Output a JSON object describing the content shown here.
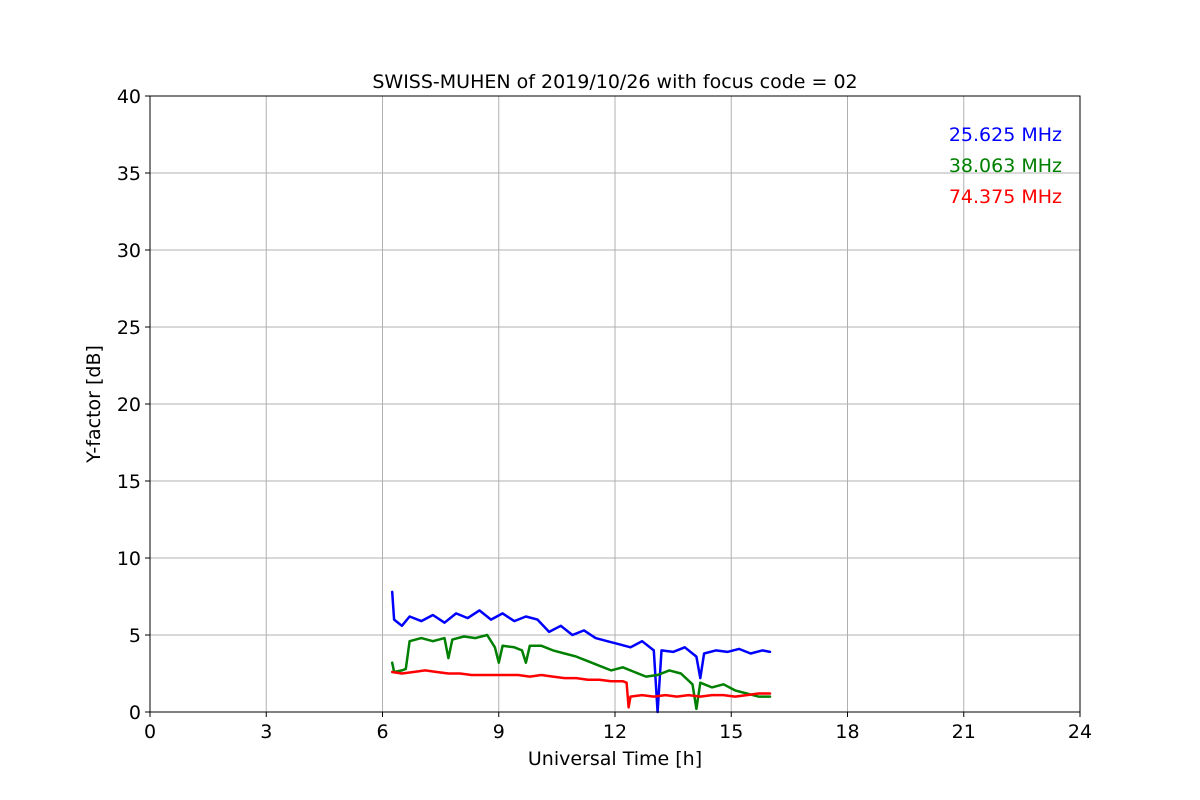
{
  "chart_data": {
    "type": "line",
    "title": "SWISS-MUHEN of 2019/10/26 with focus code = 02",
    "xlabel": "Universal Time [h]",
    "ylabel": "Y-factor [dB]",
    "xlim": [
      0,
      24
    ],
    "ylim": [
      0,
      40
    ],
    "xticks": [
      0,
      3,
      6,
      9,
      12,
      15,
      18,
      21,
      24
    ],
    "yticks": [
      0,
      5,
      10,
      15,
      20,
      25,
      30,
      35,
      40
    ],
    "grid": true,
    "legend_position": "top-right",
    "series": [
      {
        "name": "25.625 MHz",
        "color": "#0000ff",
        "points": [
          [
            6.25,
            7.8
          ],
          [
            6.3,
            6.0
          ],
          [
            6.5,
            5.6
          ],
          [
            6.7,
            6.2
          ],
          [
            7.0,
            5.9
          ],
          [
            7.3,
            6.3
          ],
          [
            7.6,
            5.8
          ],
          [
            7.9,
            6.4
          ],
          [
            8.2,
            6.1
          ],
          [
            8.5,
            6.6
          ],
          [
            8.8,
            6.0
          ],
          [
            9.1,
            6.4
          ],
          [
            9.4,
            5.9
          ],
          [
            9.7,
            6.2
          ],
          [
            10.0,
            6.0
          ],
          [
            10.3,
            5.2
          ],
          [
            10.6,
            5.6
          ],
          [
            10.9,
            5.0
          ],
          [
            11.2,
            5.3
          ],
          [
            11.5,
            4.8
          ],
          [
            11.8,
            4.6
          ],
          [
            12.1,
            4.4
          ],
          [
            12.4,
            4.2
          ],
          [
            12.7,
            4.6
          ],
          [
            13.0,
            4.0
          ],
          [
            13.1,
            0.0
          ],
          [
            13.2,
            4.0
          ],
          [
            13.5,
            3.9
          ],
          [
            13.8,
            4.2
          ],
          [
            14.1,
            3.6
          ],
          [
            14.2,
            2.2
          ],
          [
            14.3,
            3.8
          ],
          [
            14.6,
            4.0
          ],
          [
            14.9,
            3.9
          ],
          [
            15.2,
            4.1
          ],
          [
            15.5,
            3.8
          ],
          [
            15.8,
            4.0
          ],
          [
            16.0,
            3.9
          ]
        ]
      },
      {
        "name": "38.063 MHz",
        "color": "#008000",
        "points": [
          [
            6.25,
            3.2
          ],
          [
            6.3,
            2.6
          ],
          [
            6.5,
            2.7
          ],
          [
            6.6,
            2.8
          ],
          [
            6.7,
            4.6
          ],
          [
            7.0,
            4.8
          ],
          [
            7.3,
            4.6
          ],
          [
            7.6,
            4.8
          ],
          [
            7.7,
            3.5
          ],
          [
            7.8,
            4.7
          ],
          [
            8.1,
            4.9
          ],
          [
            8.4,
            4.8
          ],
          [
            8.7,
            5.0
          ],
          [
            8.9,
            4.2
          ],
          [
            9.0,
            3.2
          ],
          [
            9.1,
            4.3
          ],
          [
            9.4,
            4.2
          ],
          [
            9.6,
            4.0
          ],
          [
            9.7,
            3.2
          ],
          [
            9.8,
            4.3
          ],
          [
            10.1,
            4.3
          ],
          [
            10.4,
            4.0
          ],
          [
            10.7,
            3.8
          ],
          [
            11.0,
            3.6
          ],
          [
            11.3,
            3.3
          ],
          [
            11.6,
            3.0
          ],
          [
            11.9,
            2.7
          ],
          [
            12.2,
            2.9
          ],
          [
            12.5,
            2.6
          ],
          [
            12.8,
            2.3
          ],
          [
            13.1,
            2.4
          ],
          [
            13.4,
            2.7
          ],
          [
            13.7,
            2.5
          ],
          [
            14.0,
            1.8
          ],
          [
            14.1,
            0.2
          ],
          [
            14.2,
            1.9
          ],
          [
            14.5,
            1.6
          ],
          [
            14.8,
            1.8
          ],
          [
            15.1,
            1.4
          ],
          [
            15.4,
            1.2
          ],
          [
            15.7,
            1.0
          ],
          [
            16.0,
            1.0
          ]
        ]
      },
      {
        "name": "74.375 MHz",
        "color": "#ff0000",
        "points": [
          [
            6.25,
            2.6
          ],
          [
            6.5,
            2.5
          ],
          [
            6.8,
            2.6
          ],
          [
            7.1,
            2.7
          ],
          [
            7.4,
            2.6
          ],
          [
            7.7,
            2.5
          ],
          [
            8.0,
            2.5
          ],
          [
            8.3,
            2.4
          ],
          [
            8.6,
            2.4
          ],
          [
            8.9,
            2.4
          ],
          [
            9.2,
            2.4
          ],
          [
            9.5,
            2.4
          ],
          [
            9.8,
            2.3
          ],
          [
            10.1,
            2.4
          ],
          [
            10.4,
            2.3
          ],
          [
            10.7,
            2.2
          ],
          [
            11.0,
            2.2
          ],
          [
            11.3,
            2.1
          ],
          [
            11.6,
            2.1
          ],
          [
            11.9,
            2.0
          ],
          [
            12.2,
            2.0
          ],
          [
            12.3,
            1.9
          ],
          [
            12.35,
            0.3
          ],
          [
            12.4,
            1.0
          ],
          [
            12.7,
            1.1
          ],
          [
            13.0,
            1.0
          ],
          [
            13.3,
            1.1
          ],
          [
            13.6,
            1.0
          ],
          [
            13.9,
            1.1
          ],
          [
            14.2,
            1.0
          ],
          [
            14.5,
            1.1
          ],
          [
            14.8,
            1.1
          ],
          [
            15.1,
            1.0
          ],
          [
            15.4,
            1.1
          ],
          [
            15.7,
            1.2
          ],
          [
            16.0,
            1.2
          ]
        ]
      }
    ]
  }
}
